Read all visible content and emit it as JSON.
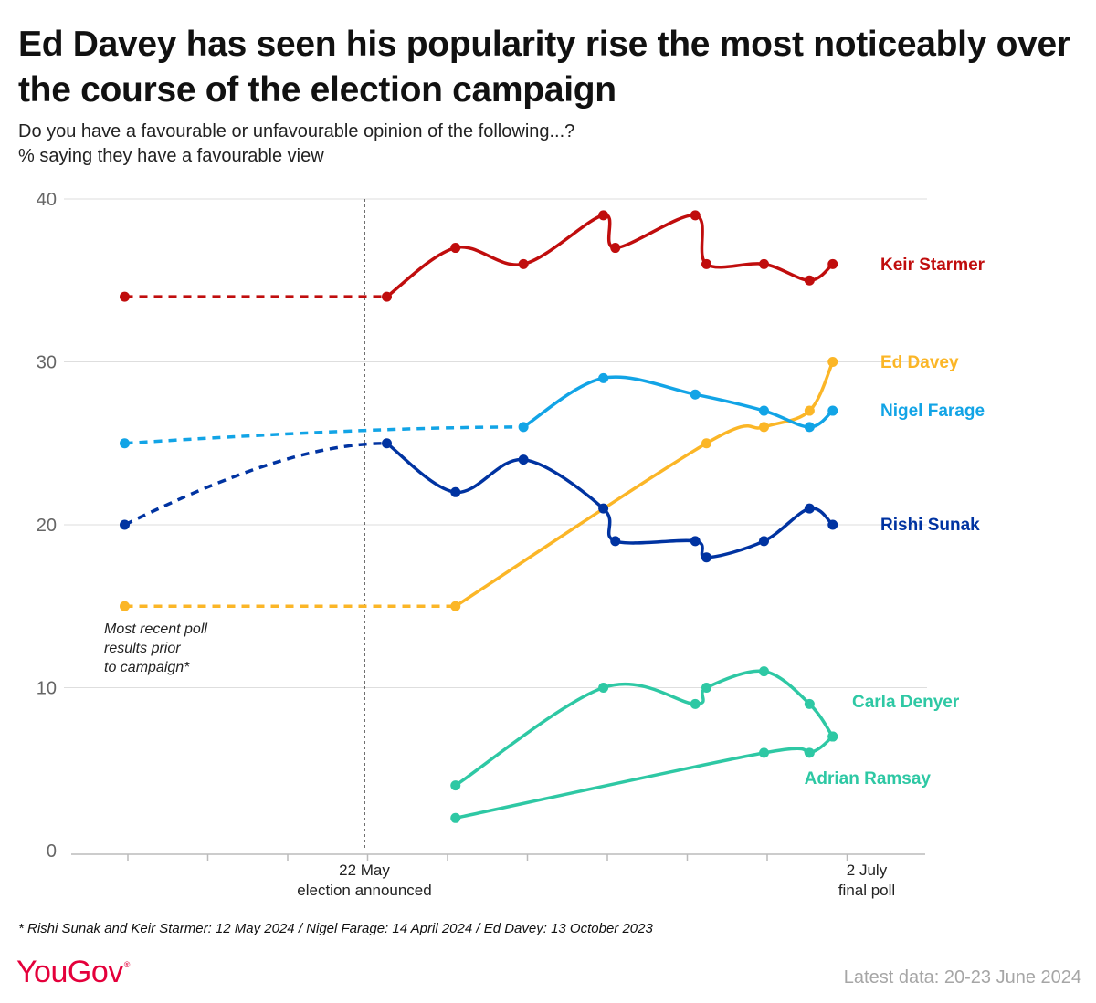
{
  "title": "Ed Davey has seen his popularity rise the most noticeably over the course of the election campaign",
  "subtitle_lines": [
    "Do you have a favourable or unfavourable opinion of the following...?",
    "% saying they have a favourable view"
  ],
  "footnote": "* Rishi Sunak and Keir Starmer: 12 May 2024 / Nigel Farage: 14 April 2024 / Ed Davey: 13 October 2023",
  "source": {
    "logo": "YouGov",
    "latest": "Latest data: 20-23 June 2024"
  },
  "colors": {
    "Keir Starmer": "#c00d0d",
    "Ed Davey": "#fbb627",
    "Nigel Farage": "#12a4e6",
    "Rishi Sunak": "#0033a1",
    "Carla Denyer": "#2ec8a4",
    "Adrian Ramsay": "#2ec8a4",
    "grid": "#dedede",
    "axis": "#bbbbbb"
  },
  "chart_data": {
    "type": "line",
    "ylim": [
      0,
      40
    ],
    "yticks": [
      0,
      10,
      20,
      30,
      40
    ],
    "x_unit": "weeks relative to 22 May",
    "xlim": [
      -3.5,
      6.5
    ],
    "x_labels": [
      {
        "x": 0,
        "lines": [
          "22 May",
          "election announced"
        ]
      },
      {
        "x": 6,
        "lines": [
          "2 July",
          "final poll"
        ]
      }
    ],
    "vline": {
      "x": 0,
      "style": "dashed"
    },
    "pre_campaign_note": [
      "Most recent poll",
      "results prior",
      "to campaign*"
    ],
    "series": [
      {
        "name": "Keir Starmer",
        "pre": [
          [
            -3,
            34
          ],
          [
            0.28,
            34
          ]
        ],
        "points": [
          [
            0.28,
            34
          ],
          [
            1.14,
            37
          ],
          [
            1.99,
            36
          ],
          [
            2.99,
            39
          ],
          [
            3.14,
            37
          ],
          [
            4.14,
            39
          ],
          [
            4.28,
            36
          ],
          [
            5.0,
            36
          ],
          [
            5.57,
            35
          ],
          [
            5.86,
            36
          ]
        ]
      },
      {
        "name": "Ed Davey",
        "pre": [
          [
            -3,
            15
          ],
          [
            1.14,
            15
          ]
        ],
        "points": [
          [
            1.14,
            15
          ],
          [
            4.28,
            25
          ],
          [
            5.0,
            26
          ],
          [
            5.57,
            27
          ],
          [
            5.86,
            30
          ]
        ]
      },
      {
        "name": "Nigel Farage",
        "pre": [
          [
            -3,
            25
          ],
          [
            1.99,
            26
          ]
        ],
        "points": [
          [
            1.99,
            26
          ],
          [
            2.99,
            29
          ],
          [
            4.14,
            28
          ],
          [
            5.0,
            27
          ],
          [
            5.57,
            26
          ],
          [
            5.86,
            27
          ]
        ]
      },
      {
        "name": "Rishi Sunak",
        "pre": [
          [
            -3,
            20
          ],
          [
            0.28,
            25
          ]
        ],
        "points": [
          [
            0.28,
            25
          ],
          [
            1.14,
            22
          ],
          [
            1.99,
            24
          ],
          [
            2.99,
            21
          ],
          [
            3.14,
            19
          ],
          [
            4.14,
            19
          ],
          [
            4.28,
            18
          ],
          [
            5.0,
            19
          ],
          [
            5.57,
            21
          ],
          [
            5.86,
            20
          ]
        ]
      },
      {
        "name": "Carla Denyer",
        "points": [
          [
            1.14,
            4
          ],
          [
            2.99,
            10
          ],
          [
            4.14,
            9
          ],
          [
            4.28,
            10
          ],
          [
            5.0,
            11
          ],
          [
            5.57,
            9
          ],
          [
            5.86,
            7
          ]
        ]
      },
      {
        "name": "Adrian Ramsay",
        "points": [
          [
            1.14,
            2
          ],
          [
            5.0,
            6
          ],
          [
            5.57,
            6
          ],
          [
            5.86,
            7
          ]
        ]
      }
    ]
  }
}
